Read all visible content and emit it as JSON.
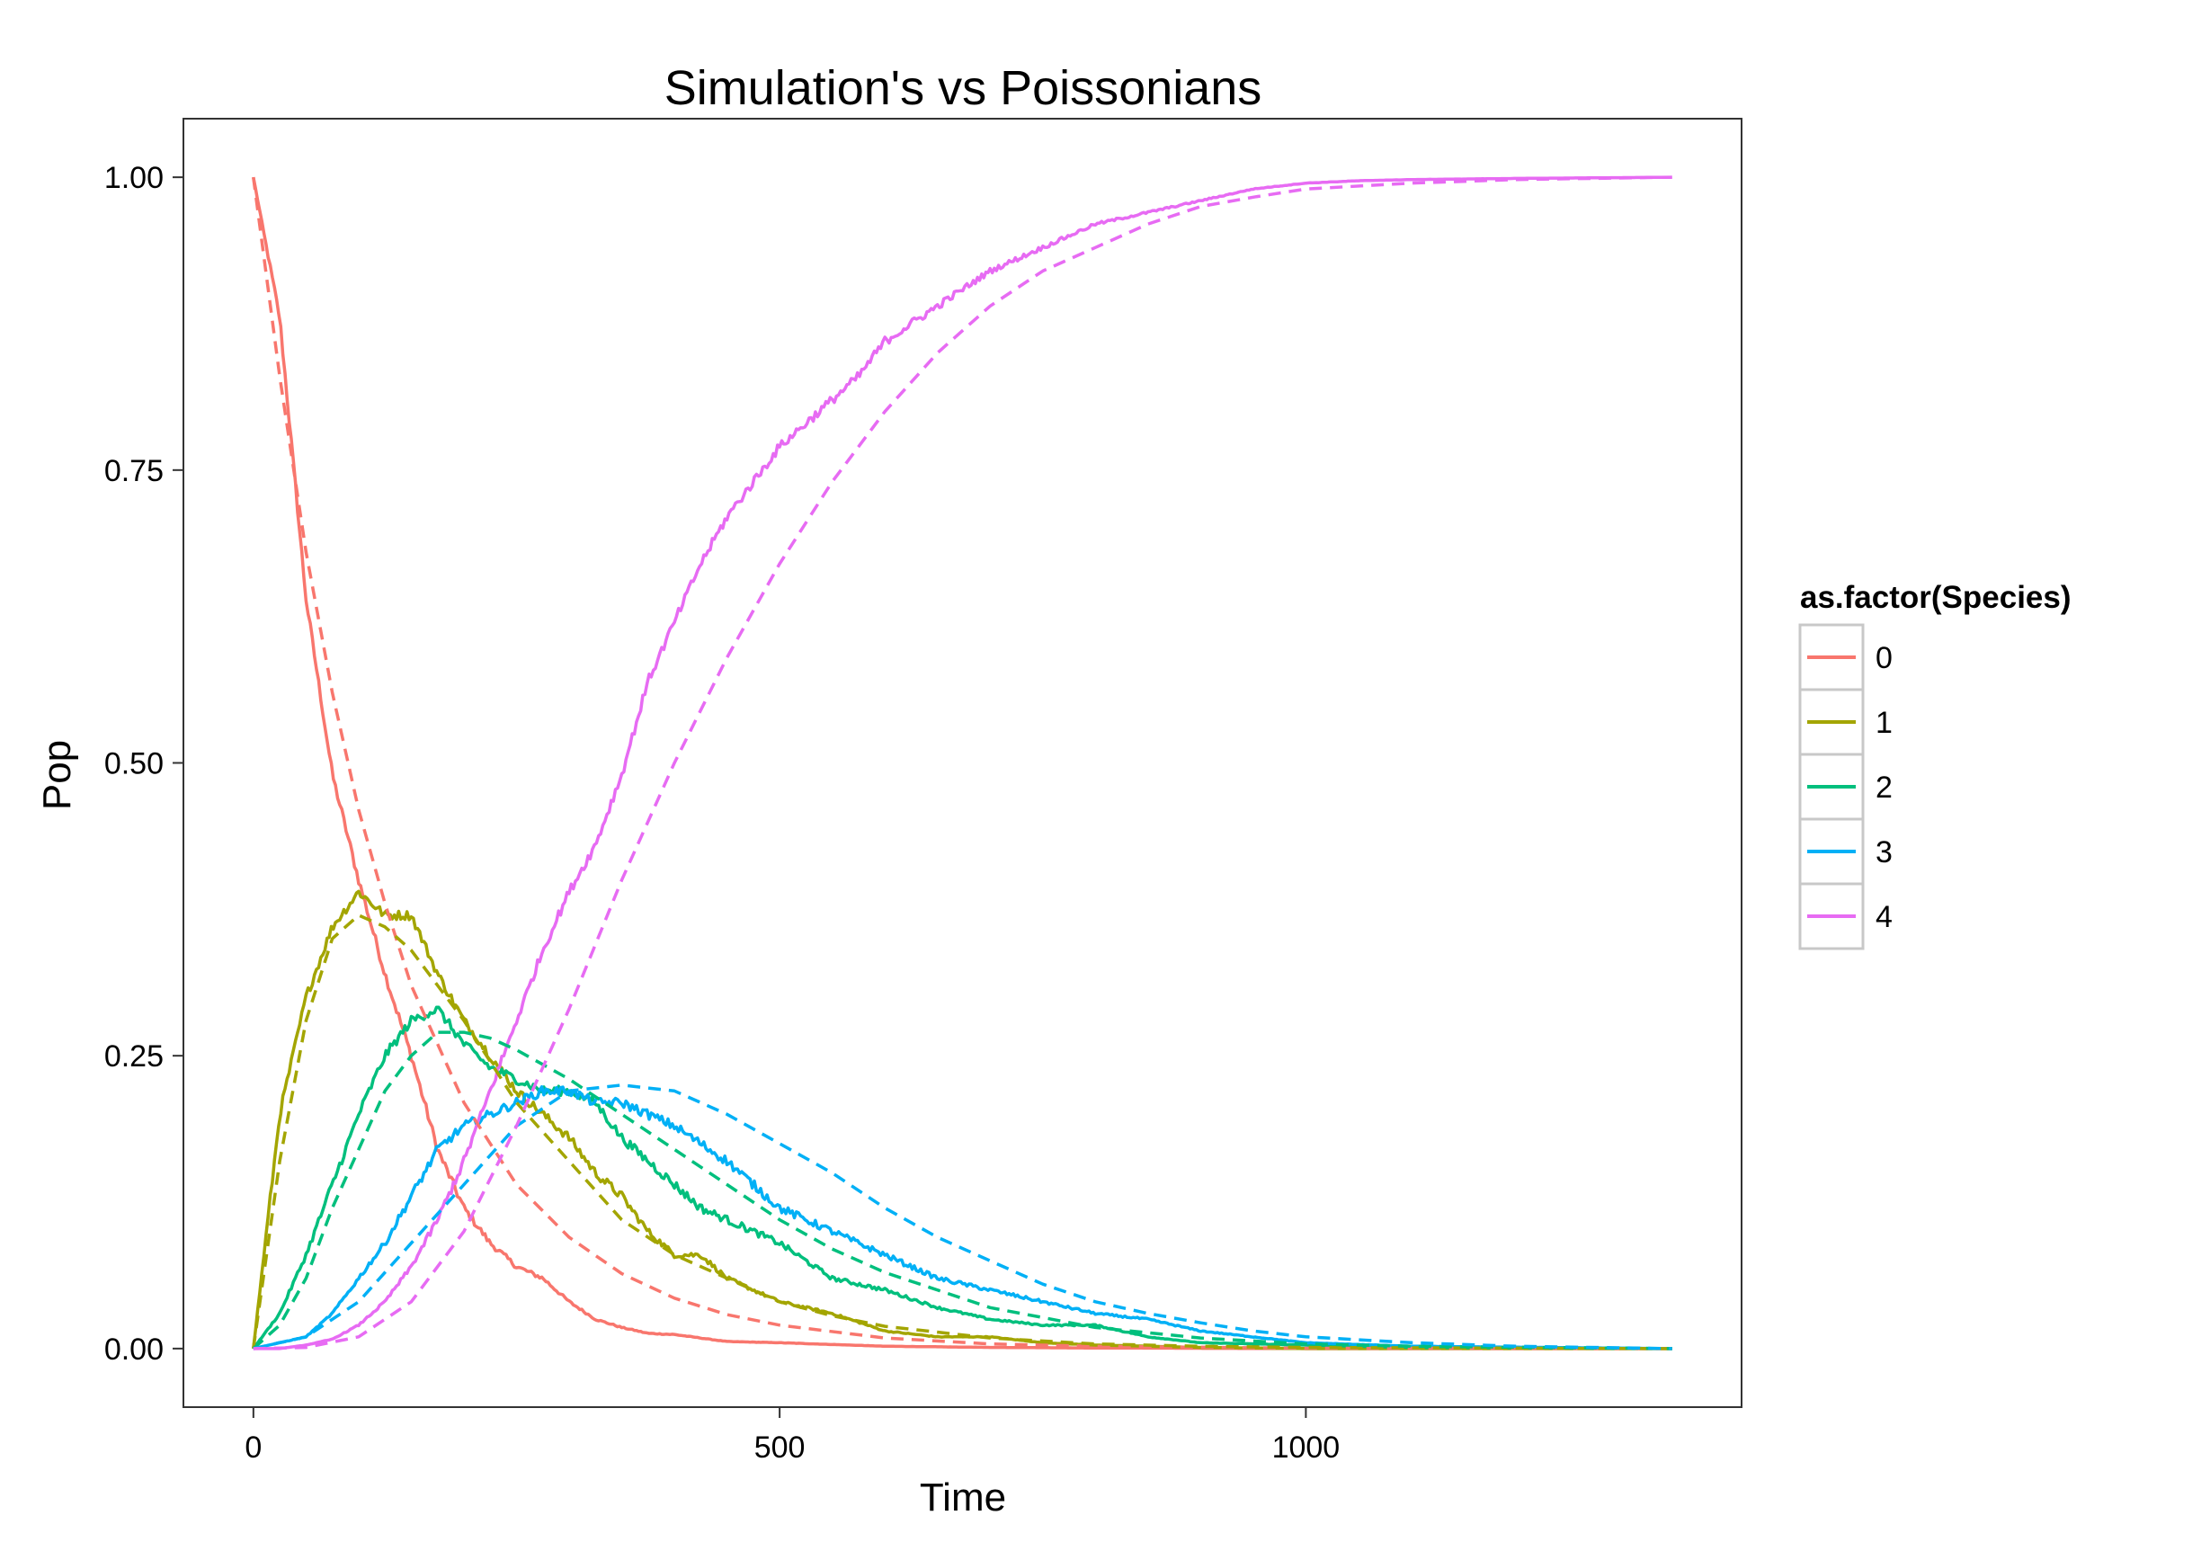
{
  "chart_data": {
    "type": "line",
    "title": "Simulation's vs Poissonians",
    "xlabel": "Time",
    "ylabel": "Pop",
    "xlim": [
      -66.5,
      1414
    ],
    "ylim": [
      -0.05,
      1.05
    ],
    "x_ticks": [
      0,
      500,
      1000
    ],
    "x_tick_labels": [
      "0",
      "500",
      "1000"
    ],
    "y_ticks": [
      0,
      0.25,
      0.5,
      0.75,
      1.0
    ],
    "y_tick_labels": [
      "0.00",
      "0.25",
      "0.50",
      "0.75",
      "1.00"
    ],
    "grid": false,
    "legend": {
      "title": "as.factor(Species)",
      "position": "right",
      "entries": [
        "0",
        "1",
        "2",
        "3",
        "4"
      ]
    },
    "colors": {
      "0": "#F8766D",
      "1": "#A3A500",
      "2": "#00BF7D",
      "3": "#00B0F6",
      "4": "#E76BF3"
    },
    "x_max": 1348,
    "series": [
      {
        "name": "0",
        "style": "solid",
        "x": [
          0,
          25,
          50,
          75,
          100,
          125,
          150,
          175,
          200,
          225,
          250,
          275,
          300,
          325,
          350,
          375,
          400,
          450,
          500,
          600,
          700,
          800,
          1000,
          1348
        ],
        "values": [
          1.0,
          0.88,
          0.64,
          0.49,
          0.4,
          0.32,
          0.25,
          0.17,
          0.12,
          0.09,
          0.07,
          0.06,
          0.04,
          0.025,
          0.018,
          0.013,
          0.012,
          0.006,
          0.005,
          0.002,
          0.001,
          0.0005,
          0.0,
          0.0
        ]
      },
      {
        "name": "1",
        "style": "solid",
        "x": [
          0,
          10,
          25,
          50,
          75,
          100,
          125,
          150,
          175,
          200,
          225,
          250,
          275,
          300,
          325,
          350,
          375,
          400,
          425,
          450,
          475,
          500,
          550,
          600,
          650,
          700,
          750,
          800,
          900,
          1000,
          1348
        ],
        "values": [
          0.0,
          0.08,
          0.2,
          0.3,
          0.36,
          0.39,
          0.37,
          0.37,
          0.32,
          0.28,
          0.25,
          0.22,
          0.2,
          0.18,
          0.15,
          0.13,
          0.1,
          0.08,
          0.08,
          0.06,
          0.05,
          0.04,
          0.03,
          0.015,
          0.01,
          0.01,
          0.005,
          0.003,
          0.001,
          0.0,
          0.0
        ]
      },
      {
        "name": "2",
        "style": "solid",
        "x": [
          0,
          25,
          50,
          75,
          100,
          125,
          150,
          175,
          200,
          225,
          250,
          275,
          300,
          325,
          350,
          375,
          400,
          425,
          450,
          475,
          500,
          550,
          600,
          650,
          700,
          750,
          800,
          850,
          900,
          1000,
          1100,
          1348
        ],
        "values": [
          0.0,
          0.03,
          0.08,
          0.14,
          0.2,
          0.25,
          0.28,
          0.29,
          0.26,
          0.24,
          0.23,
          0.22,
          0.22,
          0.21,
          0.18,
          0.16,
          0.14,
          0.12,
          0.11,
          0.1,
          0.09,
          0.06,
          0.05,
          0.035,
          0.025,
          0.02,
          0.02,
          0.01,
          0.005,
          0.003,
          0.001,
          0.0
        ]
      },
      {
        "name": "3",
        "style": "solid",
        "x": [
          0,
          25,
          50,
          75,
          100,
          125,
          150,
          175,
          200,
          225,
          250,
          275,
          300,
          325,
          350,
          400,
          450,
          500,
          550,
          600,
          650,
          700,
          750,
          800,
          850,
          900,
          950,
          1000,
          1100,
          1348
        ],
        "values": [
          0.0,
          0.005,
          0.01,
          0.03,
          0.06,
          0.09,
          0.13,
          0.17,
          0.19,
          0.2,
          0.21,
          0.22,
          0.22,
          0.21,
          0.21,
          0.19,
          0.16,
          0.12,
          0.1,
          0.08,
          0.06,
          0.05,
          0.04,
          0.03,
          0.025,
          0.015,
          0.01,
          0.005,
          0.002,
          0.0
        ]
      },
      {
        "name": "4",
        "style": "solid",
        "x": [
          0,
          25,
          50,
          75,
          100,
          125,
          150,
          175,
          200,
          225,
          250,
          275,
          300,
          325,
          350,
          375,
          400,
          425,
          450,
          475,
          500,
          525,
          550,
          575,
          600,
          650,
          700,
          750,
          800,
          850,
          900,
          950,
          1000,
          1050,
          1100,
          1200,
          1348
        ],
        "values": [
          0.0,
          0.0,
          0.003,
          0.008,
          0.02,
          0.04,
          0.07,
          0.11,
          0.16,
          0.22,
          0.28,
          0.34,
          0.39,
          0.43,
          0.49,
          0.57,
          0.62,
          0.67,
          0.71,
          0.74,
          0.77,
          0.79,
          0.81,
          0.83,
          0.86,
          0.89,
          0.92,
          0.94,
          0.96,
          0.97,
          0.98,
          0.99,
          0.995,
          0.997,
          0.998,
          0.999,
          1.0
        ]
      },
      {
        "name": "0",
        "style": "dashed",
        "x": [
          0,
          25,
          50,
          75,
          100,
          125,
          150,
          175,
          200,
          250,
          300,
          350,
          400,
          450,
          500,
          600,
          700,
          800,
          1000,
          1348
        ],
        "values": [
          1.0,
          0.83,
          0.68,
          0.56,
          0.46,
          0.38,
          0.31,
          0.26,
          0.21,
          0.14,
          0.095,
          0.064,
          0.043,
          0.029,
          0.02,
          0.009,
          0.004,
          0.002,
          0.0003,
          0.0
        ]
      },
      {
        "name": "1",
        "style": "dashed",
        "x": [
          0,
          25,
          50,
          75,
          100,
          125,
          150,
          175,
          200,
          250,
          300,
          350,
          400,
          450,
          500,
          550,
          600,
          700,
          800,
          900,
          1000,
          1348
        ],
        "values": [
          0.0,
          0.16,
          0.28,
          0.35,
          0.37,
          0.36,
          0.34,
          0.31,
          0.28,
          0.21,
          0.16,
          0.11,
          0.08,
          0.06,
          0.04,
          0.028,
          0.019,
          0.009,
          0.004,
          0.002,
          0.001,
          0.0
        ]
      },
      {
        "name": "2",
        "style": "dashed",
        "x": [
          0,
          25,
          50,
          75,
          100,
          125,
          150,
          175,
          200,
          225,
          250,
          300,
          350,
          400,
          450,
          500,
          550,
          600,
          700,
          800,
          900,
          1000,
          1100,
          1348
        ],
        "values": [
          0.0,
          0.02,
          0.06,
          0.12,
          0.17,
          0.22,
          0.25,
          0.27,
          0.27,
          0.265,
          0.255,
          0.23,
          0.2,
          0.17,
          0.14,
          0.11,
          0.085,
          0.065,
          0.035,
          0.018,
          0.009,
          0.004,
          0.002,
          0.0
        ]
      },
      {
        "name": "3",
        "style": "dashed",
        "x": [
          0,
          50,
          100,
          150,
          200,
          250,
          300,
          350,
          400,
          450,
          500,
          550,
          600,
          650,
          700,
          750,
          800,
          850,
          900,
          950,
          1000,
          1100,
          1200,
          1348
        ],
        "values": [
          0.0,
          0.01,
          0.04,
          0.09,
          0.14,
          0.19,
          0.22,
          0.225,
          0.22,
          0.2,
          0.175,
          0.15,
          0.12,
          0.095,
          0.075,
          0.055,
          0.04,
          0.03,
          0.022,
          0.015,
          0.01,
          0.005,
          0.002,
          0.0
        ]
      },
      {
        "name": "4",
        "style": "dashed",
        "x": [
          0,
          50,
          100,
          150,
          200,
          250,
          300,
          350,
          400,
          450,
          500,
          550,
          600,
          650,
          700,
          750,
          800,
          850,
          900,
          950,
          1000,
          1100,
          1200,
          1348
        ],
        "values": [
          0.0,
          0.001,
          0.01,
          0.04,
          0.1,
          0.19,
          0.29,
          0.4,
          0.5,
          0.59,
          0.67,
          0.74,
          0.8,
          0.85,
          0.89,
          0.92,
          0.94,
          0.96,
          0.975,
          0.983,
          0.99,
          0.995,
          0.998,
          1.0
        ]
      }
    ]
  }
}
